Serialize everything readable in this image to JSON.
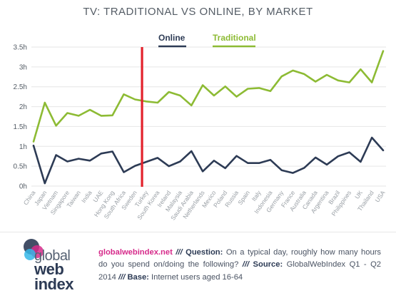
{
  "title": "TV: TRADITIONAL VS ONLINE, BY MARKET",
  "chart_data": {
    "type": "line",
    "title": "TV: TRADITIONAL VS ONLINE, BY MARKET",
    "xlabel": "",
    "ylabel": "",
    "ylim": [
      0,
      3.5
    ],
    "yticks": [
      "0h",
      "0.5h",
      "1h",
      "1.5h",
      "2h",
      "2.5h",
      "3h",
      "3.5h"
    ],
    "grid": true,
    "legend_position": "top-center",
    "divider_after_category": "Turkey",
    "divider_color": "#e3212b",
    "categories": [
      "China",
      "Japan",
      "Vietnam",
      "Singapore",
      "Taiwan",
      "India",
      "UAE",
      "Hong Kong",
      "South Africa",
      "Sweden",
      "Turkey",
      "South Korea",
      "Ireland",
      "Malaysia",
      "Saudi Arabia",
      "Netherlands",
      "Mexico",
      "Poland",
      "Russia",
      "Spain",
      "Italy",
      "Indonesia",
      "Germany",
      "France",
      "Australia",
      "Canada",
      "Argentina",
      "Brazil",
      "Philippines",
      "UK",
      "Thailand",
      "USA"
    ],
    "series": [
      {
        "name": "Online",
        "color": "#2d3b55",
        "values": [
          1.02,
          0.07,
          0.78,
          0.62,
          0.69,
          0.64,
          0.82,
          0.87,
          0.35,
          0.51,
          0.61,
          0.71,
          0.5,
          0.62,
          0.88,
          0.37,
          0.64,
          0.45,
          0.76,
          0.58,
          0.58,
          0.66,
          0.4,
          0.33,
          0.46,
          0.72,
          0.54,
          0.75,
          0.85,
          0.61,
          1.22,
          0.9
        ]
      },
      {
        "name": "Traditional",
        "color": "#8dbb34",
        "values": [
          1.12,
          2.1,
          1.52,
          1.84,
          1.77,
          1.92,
          1.77,
          1.78,
          2.31,
          2.18,
          2.13,
          2.1,
          2.37,
          2.28,
          2.03,
          2.54,
          2.28,
          2.51,
          2.25,
          2.45,
          2.47,
          2.39,
          2.76,
          2.91,
          2.82,
          2.63,
          2.8,
          2.66,
          2.61,
          2.94,
          2.61,
          3.4
        ]
      }
    ]
  },
  "footer": {
    "logo_text": [
      "global",
      "web",
      "index"
    ],
    "brand_site": "globalwebindex.net",
    "separator": "///",
    "question_label": "Question:",
    "question_text": "On a typical day, roughly how many hours do you spend on/doing the following?",
    "source_label": "Source:",
    "source_text": "GlobalWebIndex Q1 - Q2 2014",
    "base_label": "Base:",
    "base_text": "Internet users aged 16-64"
  },
  "colors": {
    "online": "#2d3b55",
    "traditional": "#8dbb34",
    "divider": "#e3212b",
    "logo_navy": "#2d3b55",
    "logo_magenta": "#d62a8a",
    "logo_cyan": "#35b7e7"
  }
}
